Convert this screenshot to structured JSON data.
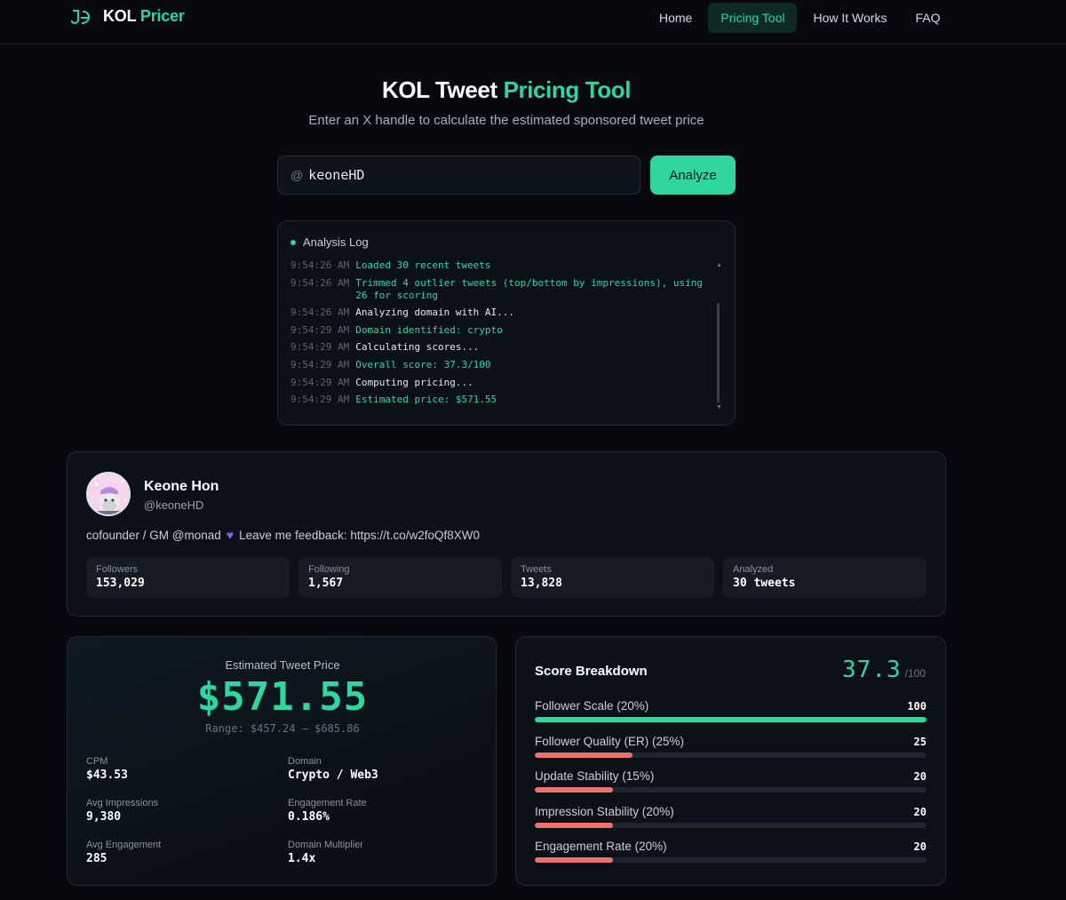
{
  "header": {
    "brand_prefix": "KOL",
    "brand_suffix": "Pricer",
    "nav": [
      {
        "label": "Home",
        "active": false
      },
      {
        "label": "Pricing Tool",
        "active": true
      },
      {
        "label": "How It Works",
        "active": false
      },
      {
        "label": "FAQ",
        "active": false
      }
    ]
  },
  "hero": {
    "title_prefix": "KOL Tweet",
    "title_accent": "Pricing Tool",
    "subtitle": "Enter an X handle to calculate the estimated sponsored tweet price"
  },
  "search": {
    "prefix": "@",
    "value": "keoneHD",
    "button_label": "Analyze"
  },
  "log": {
    "title": "Analysis Log",
    "entries": [
      {
        "time": "9:54:26 AM",
        "message": "Loaded 30 recent tweets",
        "success": true
      },
      {
        "time": "9:54:26 AM",
        "message": "Trimmed 4 outlier tweets (top/bottom by impressions), using 26 for scoring",
        "success": true
      },
      {
        "time": "9:54:26 AM",
        "message": "Analyzing domain with AI...",
        "success": false
      },
      {
        "time": "9:54:29 AM",
        "message": "Domain identified: crypto",
        "success": true
      },
      {
        "time": "9:54:29 AM",
        "message": "Calculating scores...",
        "success": false
      },
      {
        "time": "9:54:29 AM",
        "message": "Overall score: 37.3/100",
        "success": true
      },
      {
        "time": "9:54:29 AM",
        "message": "Computing pricing...",
        "success": false
      },
      {
        "time": "9:54:29 AM",
        "message": "Estimated price: $571.55",
        "success": true
      }
    ]
  },
  "profile": {
    "name": "Keone Hon",
    "handle": "@keoneHD",
    "bio_before": "cofounder / GM @monad",
    "bio_after": "Leave me feedback: https://t.co/w2foQf8XW0",
    "stats": [
      {
        "label": "Followers",
        "value": "153,029"
      },
      {
        "label": "Following",
        "value": "1,567"
      },
      {
        "label": "Tweets",
        "value": "13,828"
      },
      {
        "label": "Analyzed",
        "value": "30 tweets"
      }
    ]
  },
  "pricing": {
    "label": "Estimated Tweet Price",
    "price": "$571.55",
    "range": "Range: $457.24 — $685.86",
    "metrics": [
      {
        "label": "CPM",
        "value": "$43.53"
      },
      {
        "label": "Domain",
        "value": "Crypto / Web3"
      },
      {
        "label": "Avg Impressions",
        "value": "9,380"
      },
      {
        "label": "Engagement Rate",
        "value": "0.186%"
      },
      {
        "label": "Avg Engagement",
        "value": "285"
      },
      {
        "label": "Domain Multiplier",
        "value": "1.4x"
      }
    ]
  },
  "scores": {
    "title": "Score Breakdown",
    "total": "37.3",
    "total_suffix": "/100",
    "items": [
      {
        "name": "Follower Scale (20%)",
        "value": "100",
        "fraction": 1.0,
        "color": "#2fd69e"
      },
      {
        "name": "Follower Quality (ER) (25%)",
        "value": "25",
        "fraction": 0.25,
        "color": "#f0716b"
      },
      {
        "name": "Update Stability (15%)",
        "value": "20",
        "fraction": 0.2,
        "color": "#f0716b"
      },
      {
        "name": "Impression Stability (20%)",
        "value": "20",
        "fraction": 0.2,
        "color": "#f0716b"
      },
      {
        "name": "Engagement Rate (20%)",
        "value": "20",
        "fraction": 0.2,
        "color": "#f0716b"
      }
    ]
  }
}
